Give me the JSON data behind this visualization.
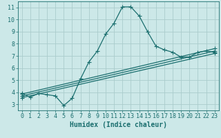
{
  "xlabel": "Humidex (Indice chaleur)",
  "bg_color": "#cce8e8",
  "grid_color": "#aacccc",
  "line_color": "#1a6e6e",
  "xlim": [
    -0.5,
    23.5
  ],
  "ylim": [
    2.5,
    11.5
  ],
  "xticks": [
    0,
    1,
    2,
    3,
    4,
    5,
    6,
    7,
    8,
    9,
    10,
    11,
    12,
    13,
    14,
    15,
    16,
    17,
    18,
    19,
    20,
    21,
    22,
    23
  ],
  "yticks": [
    3,
    4,
    5,
    6,
    7,
    8,
    9,
    10,
    11
  ],
  "series": [
    {
      "x": [
        0,
        1,
        2,
        3,
        4,
        5,
        6,
        7,
        8,
        9,
        10,
        11,
        12,
        13,
        14,
        15,
        16,
        17,
        18,
        19,
        20,
        21,
        22,
        23
      ],
      "y": [
        3.9,
        3.6,
        3.9,
        3.8,
        3.7,
        2.9,
        3.5,
        5.1,
        6.5,
        7.4,
        8.8,
        9.7,
        11.05,
        11.05,
        10.3,
        9.0,
        7.8,
        7.5,
        7.3,
        6.9,
        6.9,
        7.3,
        7.4,
        7.3
      ]
    },
    {
      "x": [
        0,
        23
      ],
      "y": [
        3.85,
        7.6
      ]
    },
    {
      "x": [
        0,
        23
      ],
      "y": [
        3.7,
        7.4
      ]
    },
    {
      "x": [
        0,
        23
      ],
      "y": [
        3.55,
        7.2
      ]
    }
  ],
  "marker": "+",
  "markersize": 4,
  "linewidth": 0.9,
  "tick_fontsize": 6.0,
  "xlabel_fontsize": 7.0
}
